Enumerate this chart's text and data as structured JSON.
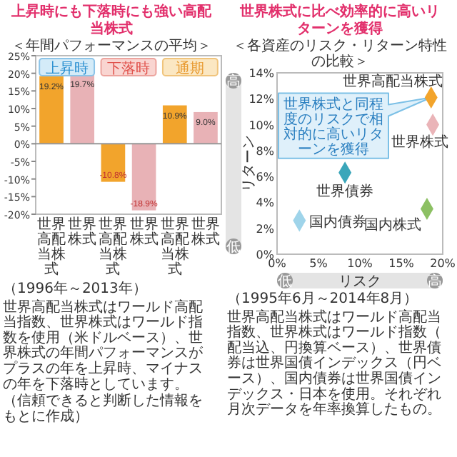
{
  "chart_data": [
    {
      "type": "bar",
      "title": "上昇時にも下落時にも強い高配当株式",
      "subtitle": "＜年間パフォーマンスの平均＞",
      "categories": [
        "世界高配当株式",
        "世界株式",
        "世界高配当株式",
        "世界株式",
        "世界高配当株式",
        "世界株式"
      ],
      "values": [
        19.2,
        19.7,
        -10.8,
        -18.9,
        10.9,
        9.0
      ],
      "colors": [
        "#f2a42c",
        "#e8b2b6",
        "#f2a42c",
        "#e8b2b6",
        "#f2a42c",
        "#e8b2b6"
      ],
      "value_labels": [
        "19.2%",
        "19.7%",
        "-10.8%",
        "-18.9%",
        "10.9%",
        "9.0%"
      ],
      "ylim": [
        -20,
        25
      ],
      "yticks": [
        {
          "value": -20,
          "label": "-20%"
        },
        {
          "value": -15,
          "label": "-15%"
        },
        {
          "value": -10,
          "label": "-10%"
        },
        {
          "value": -5,
          "label": "-5%"
        },
        {
          "value": 0,
          "label": "0%"
        },
        {
          "value": 5,
          "label": "5%"
        },
        {
          "value": 10,
          "label": "10%"
        },
        {
          "value": 15,
          "label": "15%"
        },
        {
          "value": 20,
          "label": "20%"
        },
        {
          "value": 25,
          "label": "25%"
        }
      ],
      "annotations": [
        "上昇時",
        "下落時",
        "通期",
        "（1996年～2013年）",
        "世界高配当株式はワールド高配当指数、世界株式はワールド指数を使用（米ドルベース）、世界株式の年間パフォーマンスがプラスの年を上昇時、マイナスの年を下落時としています。",
        "（信頼できると判断した情報をもとに作成）"
      ]
    },
    {
      "type": "scatter",
      "title": "世界株式に比べ効率的に高いリターンを獲得",
      "subtitle": "＜各資産のリスク・リターン特性の比較＞",
      "xlabel": "リスク",
      "ylabel": "リターン",
      "marker": "diamond",
      "series": [
        {
          "name": "世界高配当株式",
          "color": "#f2a42c",
          "x": [
            18.6
          ],
          "values": [
            12.1
          ]
        },
        {
          "name": "世界株式",
          "color": "#eab4b8",
          "x": [
            18.8
          ],
          "values": [
            10.0
          ]
        },
        {
          "name": "世界債券",
          "color": "#3aa6ba",
          "x": [
            8.2
          ],
          "values": [
            6.3
          ]
        },
        {
          "name": "国内債券",
          "color": "#9fd4ea",
          "x": [
            2.7
          ],
          "values": [
            2.6
          ]
        },
        {
          "name": "国内株式",
          "color": "#8cc063",
          "x": [
            18.1
          ],
          "values": [
            3.5
          ]
        }
      ],
      "xlim": [
        0,
        20
      ],
      "xticks": [
        {
          "value": 0,
          "label": "0%"
        },
        {
          "value": 5,
          "label": "5%"
        },
        {
          "value": 10,
          "label": "10%"
        },
        {
          "value": 15,
          "label": "15%"
        },
        {
          "value": 20,
          "label": "20%"
        }
      ],
      "ylim": [
        0,
        14
      ],
      "yticks": [
        {
          "value": 0,
          "label": "0%"
        },
        {
          "value": 2,
          "label": "2%"
        },
        {
          "value": 4,
          "label": "4%"
        },
        {
          "value": 6,
          "label": "6%"
        },
        {
          "value": 8,
          "label": "8%"
        },
        {
          "value": 10,
          "label": "10%"
        },
        {
          "value": 12,
          "label": "12%"
        },
        {
          "value": 14,
          "label": "14%"
        }
      ],
      "annotations": [
        "世界株式と同程度のリスクで相対的に高いリターンを獲得",
        "（1995年6月～2014年8月）",
        "世界高配当株式はワールド高配当指数、世界株式はワールド指数（配当込、円換算ベース）、世界債券は世界国債インデックス（円ベース）、国内債券は世界国債インデックス・日本を使用。それぞれ月次データを年率換算したもの。",
        "高",
        "低",
        "低",
        "高"
      ]
    }
  ]
}
